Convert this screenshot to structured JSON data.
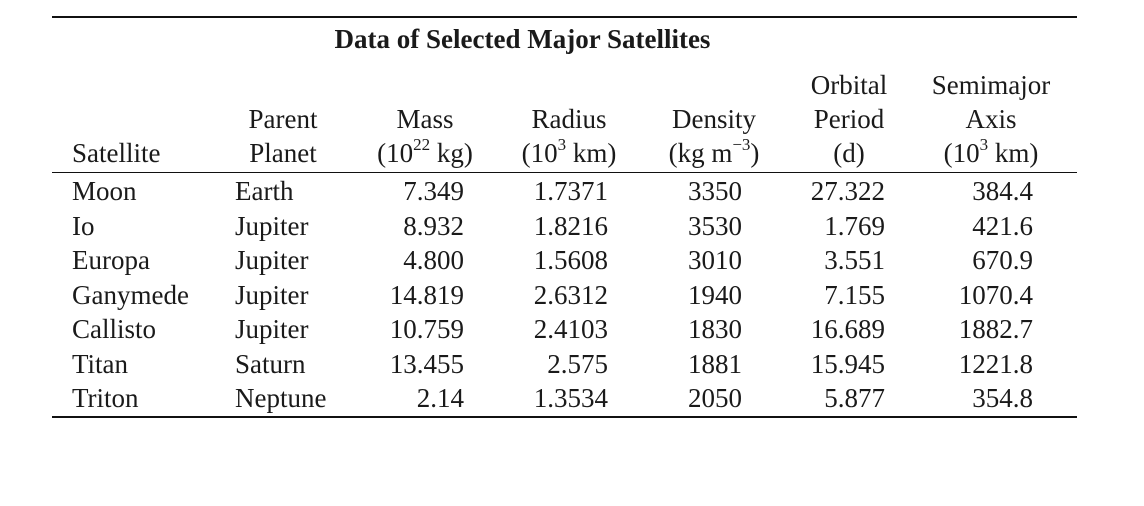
{
  "table": {
    "title": "Data of Selected Major Satellites",
    "headers": {
      "satellite": "Satellite",
      "parent_line1": "Parent",
      "parent_line2": "Planet",
      "mass_line1": "Mass",
      "mass_line2_pre": "(10",
      "mass_line2_sup": "22",
      "mass_line2_post": " kg)",
      "radius_line1": "Radius",
      "radius_line2_pre": "(10",
      "radius_line2_sup": "3",
      "radius_line2_post": " km)",
      "density_line1": "Density",
      "density_line2_pre": "(kg m",
      "density_line2_sup": "−3",
      "density_line2_post": ")",
      "period_line1": "Orbital",
      "period_line2": "Period",
      "period_line3": "(d)",
      "axis_line1": "Semimajor",
      "axis_line2": "Axis",
      "axis_line3_pre": "(10",
      "axis_line3_sup": "3",
      "axis_line3_post": " km)"
    },
    "rows": [
      {
        "satellite": "Moon",
        "parent": "Earth",
        "mass": "7.349",
        "radius": "1.7371",
        "density": "3350",
        "period": "27.322",
        "axis": "384.4"
      },
      {
        "satellite": "Io",
        "parent": "Jupiter",
        "mass": "8.932",
        "radius": "1.8216",
        "density": "3530",
        "period": "1.769",
        "axis": "421.6"
      },
      {
        "satellite": "Europa",
        "parent": "Jupiter",
        "mass": "4.800",
        "radius": "1.5608",
        "density": "3010",
        "period": "3.551",
        "axis": "670.9"
      },
      {
        "satellite": "Ganymede",
        "parent": "Jupiter",
        "mass": "14.819",
        "radius": "2.6312",
        "density": "1940",
        "period": "7.155",
        "axis": "1070.4"
      },
      {
        "satellite": "Callisto",
        "parent": "Jupiter",
        "mass": "10.759",
        "radius": "2.4103",
        "density": "1830",
        "period": "16.689",
        "axis": "1882.7"
      },
      {
        "satellite": "Titan",
        "parent": "Saturn",
        "mass": "13.455",
        "radius": "2.575",
        "density": "1881",
        "period": "15.945",
        "axis": "1221.8"
      },
      {
        "satellite": "Triton",
        "parent": "Neptune",
        "mass": "2.14",
        "radius": "1.3534",
        "density": "2050",
        "period": "5.877",
        "axis": "354.8"
      }
    ]
  }
}
